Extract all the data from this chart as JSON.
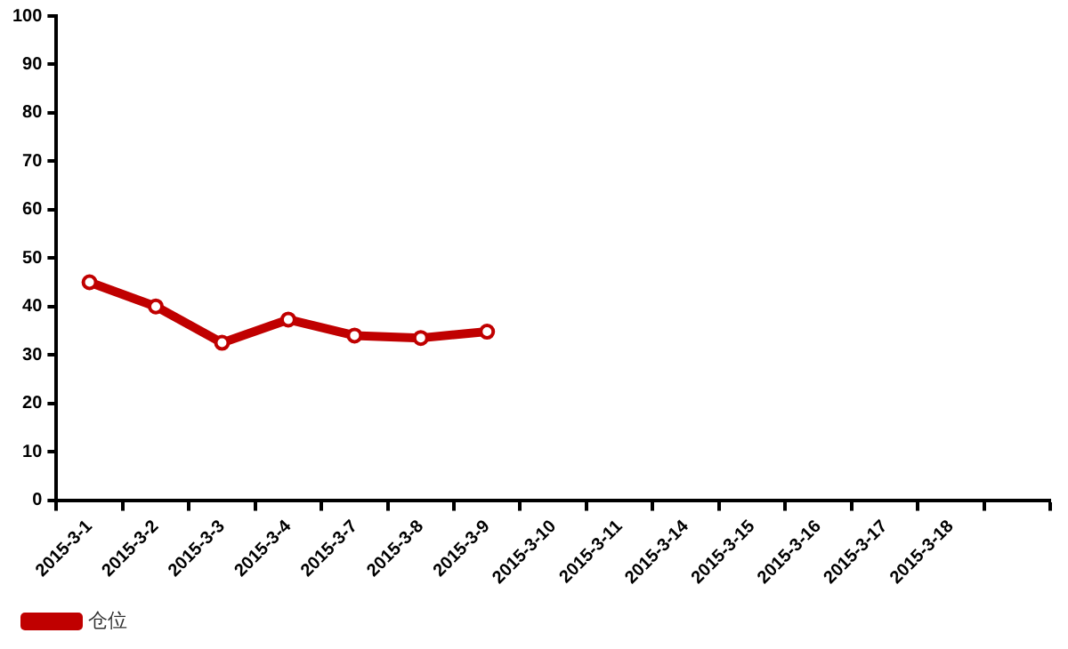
{
  "chart_data": {
    "type": "line",
    "categories": [
      "2015-3-1",
      "2015-3-2",
      "2015-3-3",
      "2015-3-4",
      "2015-3-7",
      "2015-3-8",
      "2015-3-9",
      "2015-3-10",
      "2015-3-11",
      "2015-3-14",
      "2015-3-15",
      "2015-3-16",
      "2015-3-17",
      "2015-3-18",
      null
    ],
    "series": [
      {
        "name": "仓位",
        "color": "#c00000",
        "values": [
          45,
          40,
          32.5,
          37.3,
          34,
          33.5,
          34.8,
          null,
          null,
          null,
          null,
          null,
          null,
          null,
          null
        ]
      }
    ],
    "ylim": [
      0,
      100
    ],
    "yticks": [
      0,
      10,
      20,
      30,
      40,
      50,
      60,
      70,
      80,
      90,
      100
    ],
    "grid": false,
    "legend": "bottom left",
    "marker": "circle",
    "line_style": "solid"
  }
}
